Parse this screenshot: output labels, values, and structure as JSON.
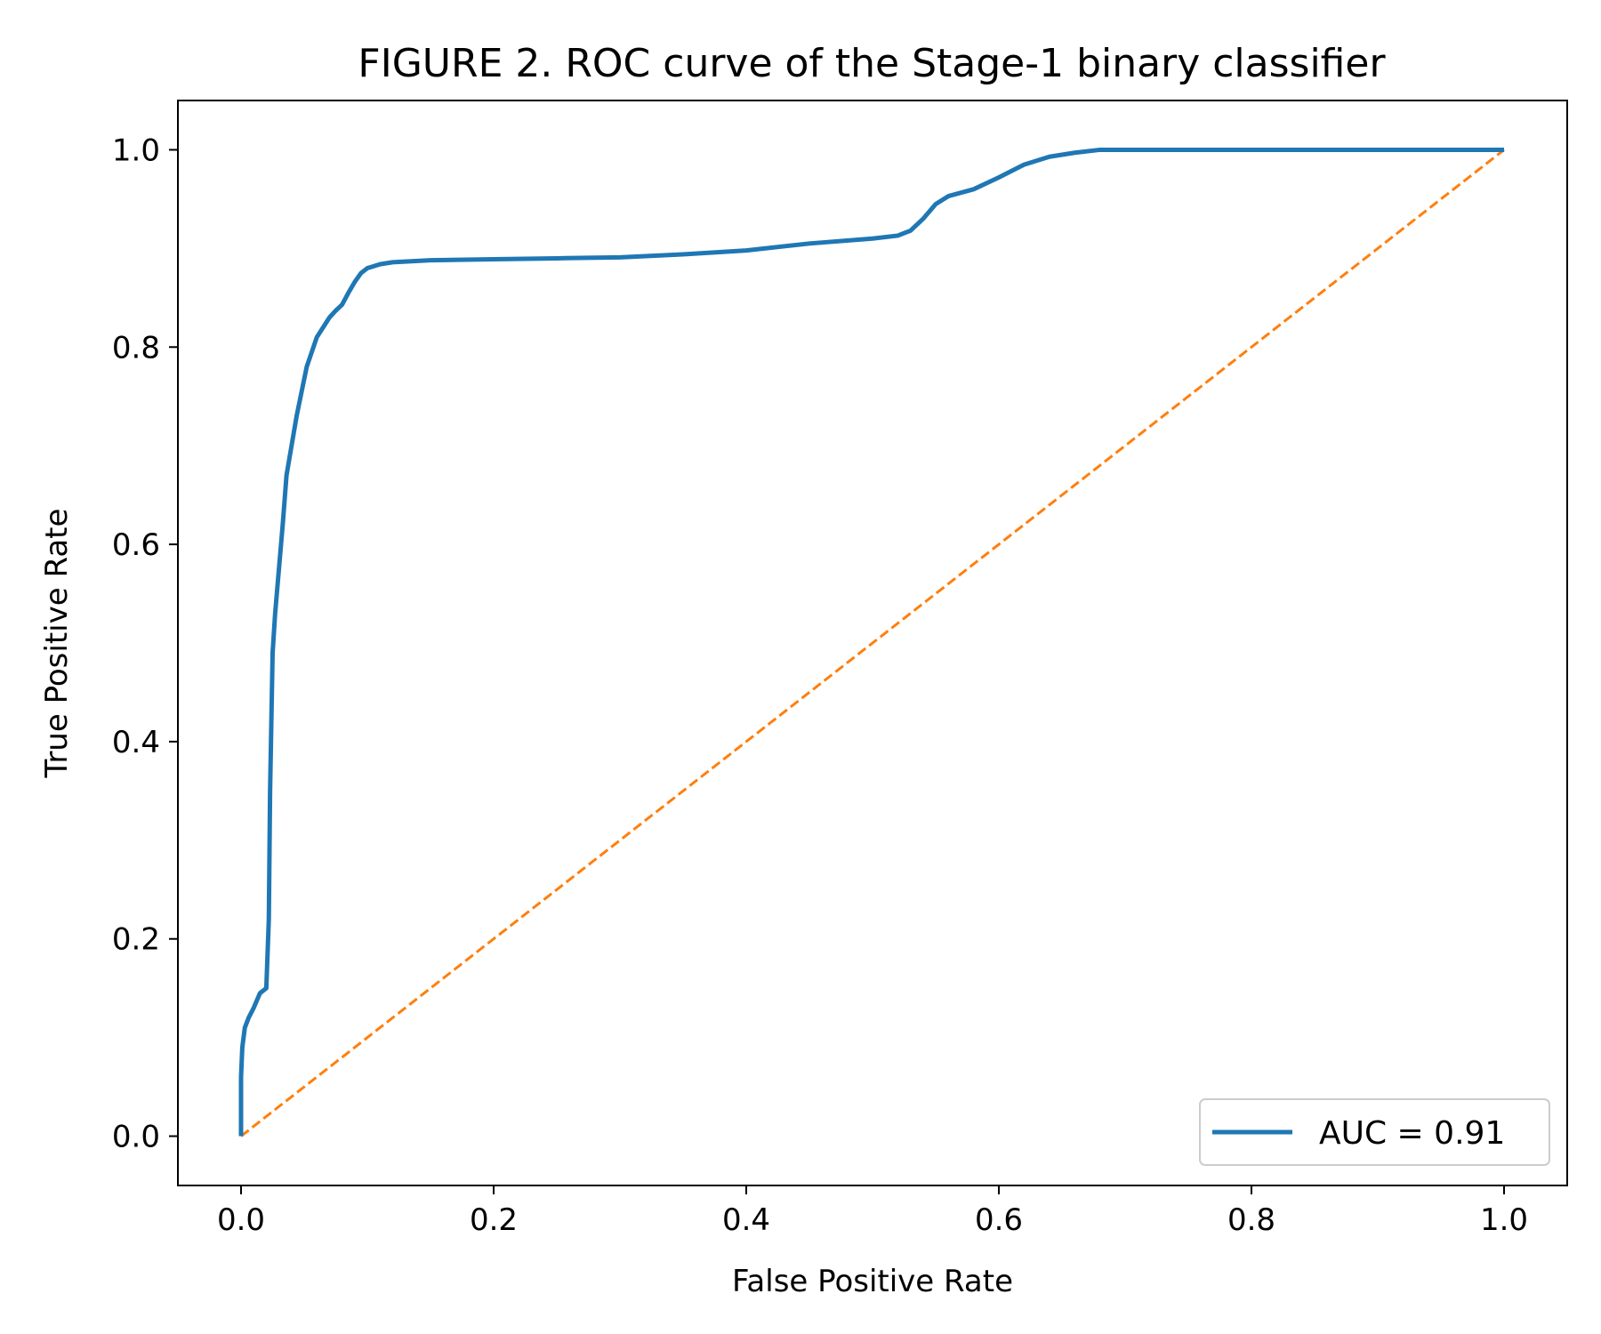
{
  "chart_data": {
    "type": "line",
    "title": "FIGURE 2. ROC curve of the Stage-1 binary classifier",
    "xlabel": "False Positive Rate",
    "ylabel": "True Positive Rate",
    "xlim": [
      -0.05,
      1.05
    ],
    "ylim": [
      -0.05,
      1.05
    ],
    "x_ticks": [
      0.0,
      0.2,
      0.4,
      0.6,
      0.8,
      1.0
    ],
    "x_tick_labels": [
      "0.0",
      "0.2",
      "0.4",
      "0.6",
      "0.8",
      "1.0"
    ],
    "y_ticks": [
      0.0,
      0.2,
      0.4,
      0.6,
      0.8,
      1.0
    ],
    "y_tick_labels": [
      "0.0",
      "0.2",
      "0.4",
      "0.6",
      "0.8",
      "1.0"
    ],
    "grid": false,
    "legend_position": "lower-right",
    "series": [
      {
        "name": "AUC = 0.91",
        "color": "#1f77b4",
        "style": "solid",
        "x": [
          0.0,
          0.0,
          0.001,
          0.003,
          0.006,
          0.01,
          0.015,
          0.02,
          0.022,
          0.023,
          0.024,
          0.025,
          0.027,
          0.03,
          0.033,
          0.036,
          0.04,
          0.044,
          0.048,
          0.052,
          0.056,
          0.06,
          0.065,
          0.07,
          0.075,
          0.08,
          0.085,
          0.09,
          0.095,
          0.1,
          0.105,
          0.11,
          0.12,
          0.15,
          0.2,
          0.25,
          0.3,
          0.35,
          0.4,
          0.45,
          0.5,
          0.52,
          0.53,
          0.54,
          0.55,
          0.56,
          0.58,
          0.6,
          0.62,
          0.64,
          0.66,
          0.68,
          0.7,
          0.8,
          0.9,
          1.0
        ],
        "y": [
          0.0,
          0.06,
          0.09,
          0.11,
          0.12,
          0.13,
          0.145,
          0.15,
          0.22,
          0.35,
          0.42,
          0.49,
          0.53,
          0.575,
          0.62,
          0.67,
          0.7,
          0.73,
          0.755,
          0.78,
          0.795,
          0.81,
          0.82,
          0.83,
          0.837,
          0.843,
          0.855,
          0.866,
          0.875,
          0.88,
          0.882,
          0.884,
          0.886,
          0.888,
          0.889,
          0.89,
          0.891,
          0.894,
          0.898,
          0.905,
          0.91,
          0.913,
          0.918,
          0.93,
          0.945,
          0.953,
          0.96,
          0.972,
          0.985,
          0.993,
          0.997,
          1.0,
          1.0,
          1.0,
          1.0,
          1.0
        ]
      },
      {
        "color": "#ff7f0e",
        "style": "dashed",
        "x": [
          0.0,
          1.0
        ],
        "y": [
          0.0,
          1.0
        ]
      }
    ]
  }
}
